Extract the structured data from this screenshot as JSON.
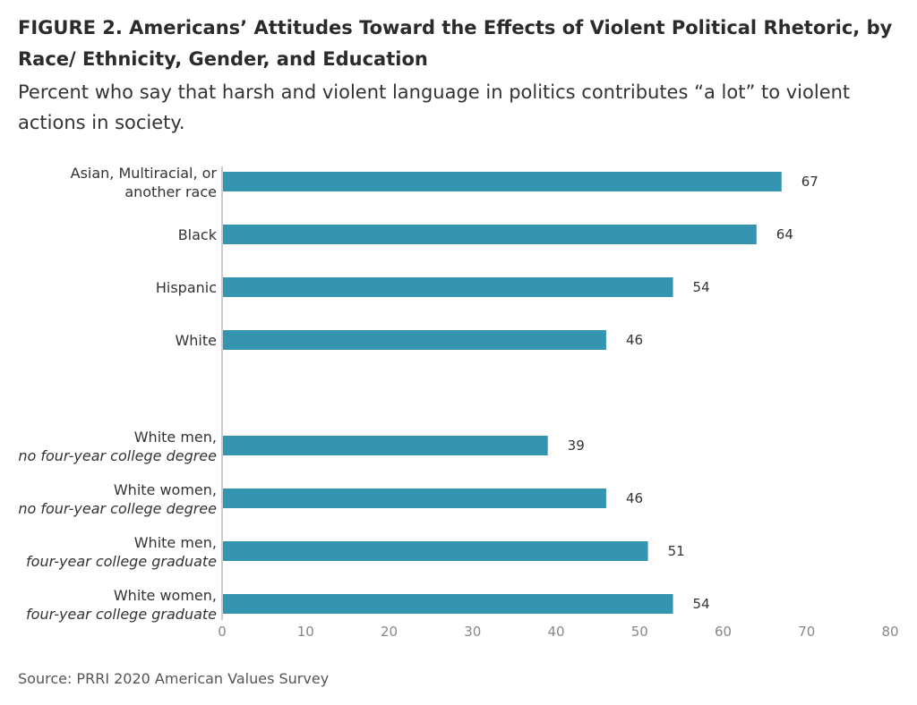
{
  "figure": {
    "title": "FIGURE 2. Americans’ Attitudes Toward the Effects of Violent Political Rhetoric, by Race/ Ethnicity, Gender, and Education",
    "subtitle": "Percent who say that harsh and violent language in politics contributes “a lot” to violent actions in society.",
    "source": "Source: PRRI 2020 American Values Survey"
  },
  "colors": {
    "bar": "#3594b0",
    "axis": "#cccccc",
    "tick_text": "#888888",
    "label_text": "#333333"
  },
  "chart_data": {
    "type": "bar",
    "orientation": "horizontal",
    "categories": [
      {
        "line1": "Asian, Multiracial, or",
        "line2": "another race",
        "line2_italic": false
      },
      {
        "line1": "Black",
        "line2": "",
        "line2_italic": false
      },
      {
        "line1": "Hispanic",
        "line2": "",
        "line2_italic": false
      },
      {
        "line1": "White",
        "line2": "",
        "line2_italic": false
      },
      {
        "line1": "White men,",
        "line2": "no four-year college degree",
        "line2_italic": true
      },
      {
        "line1": "White women,",
        "line2": "no four-year college degree",
        "line2_italic": true
      },
      {
        "line1": "White men,",
        "line2": "four-year college graduate",
        "line2_italic": true
      },
      {
        "line1": "White women,",
        "line2": "four-year college graduate",
        "line2_italic": true
      }
    ],
    "values": [
      67,
      64,
      54,
      46,
      39,
      46,
      51,
      54
    ],
    "xlim": [
      0,
      80
    ],
    "xticks": [
      0,
      10,
      20,
      30,
      40,
      50,
      60,
      70,
      80
    ],
    "data_labels": true,
    "grid": false,
    "legend": "none"
  }
}
